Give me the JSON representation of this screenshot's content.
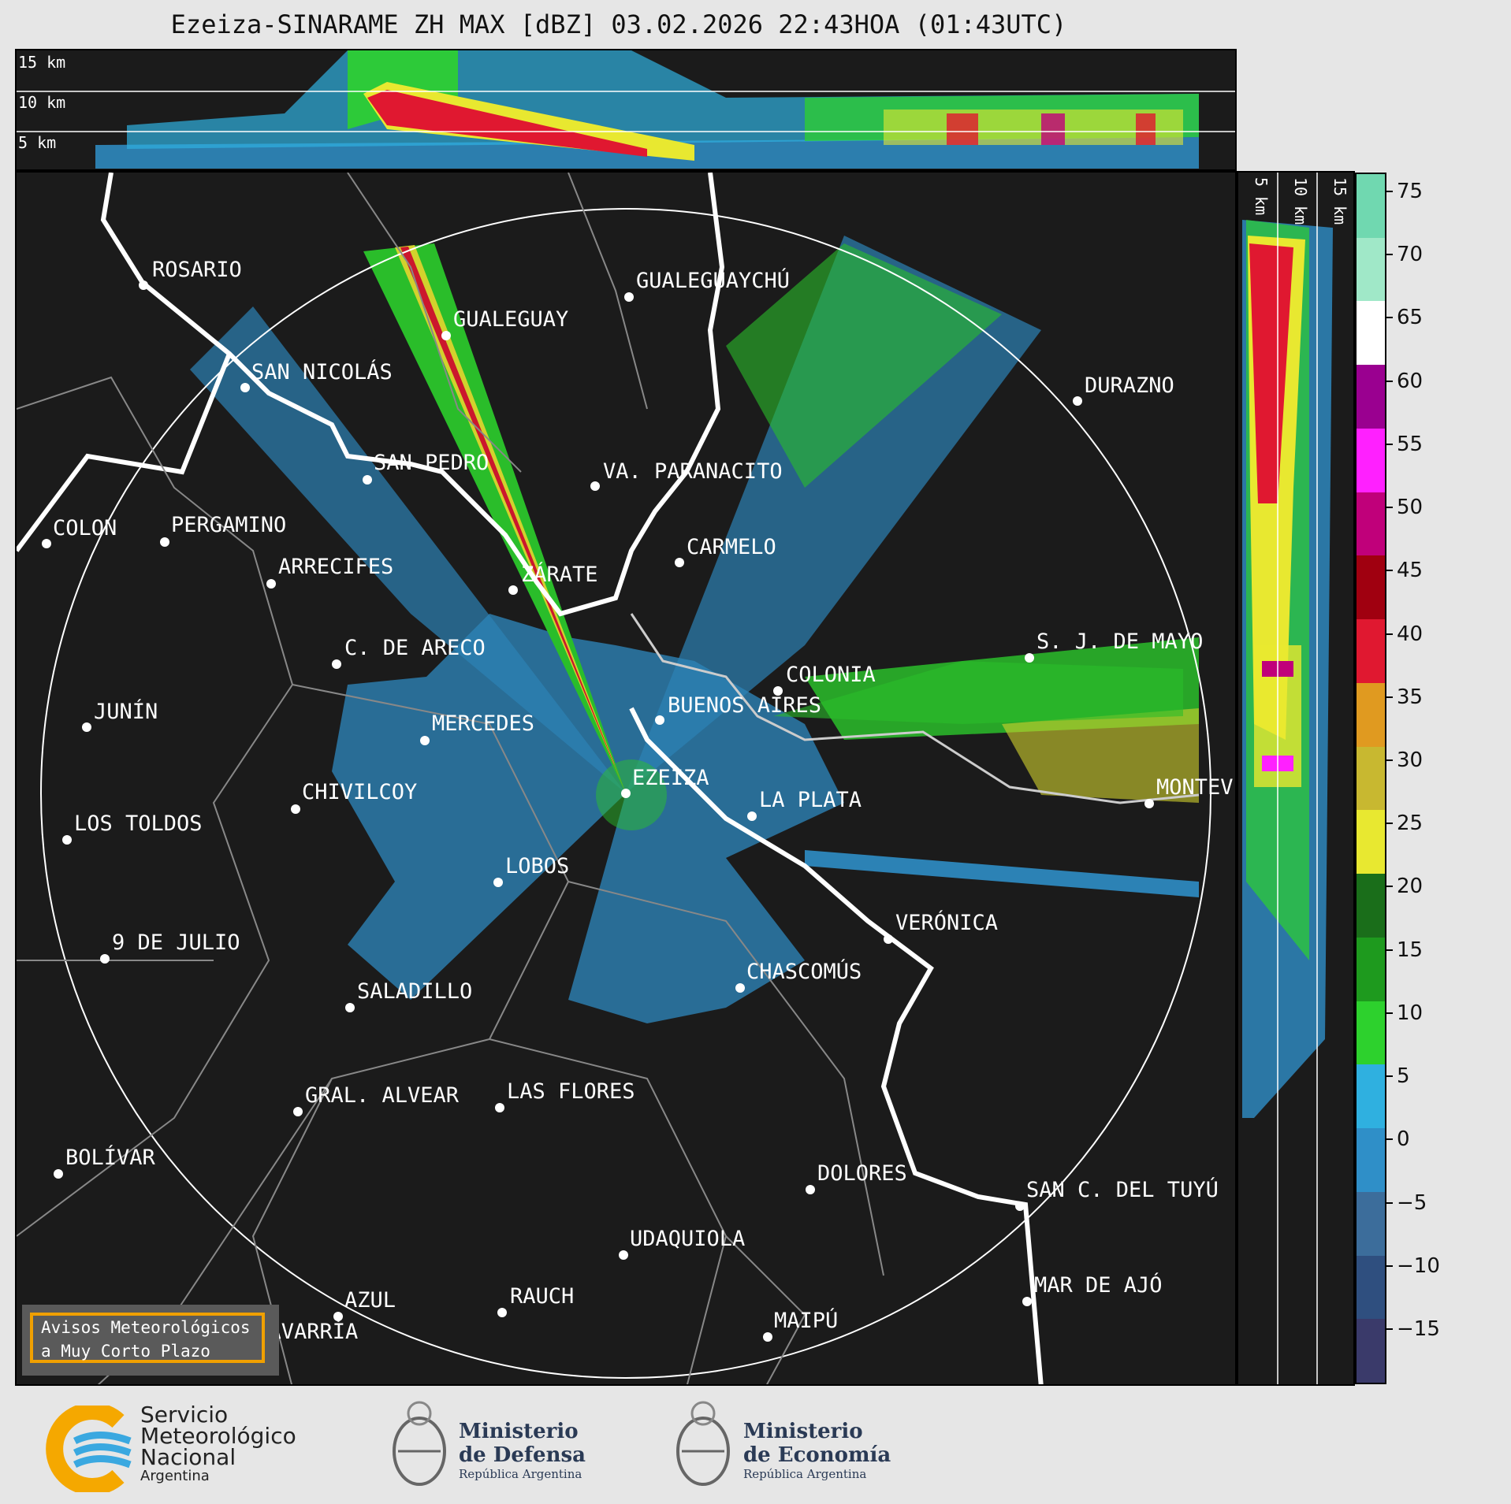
{
  "title": "Ezeiza-SINARAME ZH MAX [dBZ] 03.02.2026 22:43HOA (01:43UTC)",
  "top_panel": {
    "height_labels": [
      "15 km",
      "10 km",
      "5 km"
    ]
  },
  "side_panel": {
    "height_labels": [
      "5 km",
      "10 km",
      "15 km"
    ]
  },
  "colorbar": {
    "unit": "dBZ",
    "ticks": [
      "75",
      "70",
      "65",
      "60",
      "55",
      "50",
      "45",
      "40",
      "35",
      "30",
      "25",
      "20",
      "15",
      "10",
      "5",
      "0",
      "−5",
      "−10",
      "−15"
    ],
    "colors": [
      "#3a3a6a",
      "#2f4f7f",
      "#3c6d9b",
      "#2f8fc8",
      "#2fb0e0",
      "#2dd12d",
      "#1e9a1e",
      "#1a6e1a",
      "#e8e830",
      "#c8b830",
      "#e09a20",
      "#e01830",
      "#a00010",
      "#c0007a",
      "#ff20ff",
      "#9a0090",
      "#ffffff",
      "#a0e8c8",
      "#70d8b0"
    ]
  },
  "cities": [
    {
      "name": "ROSARIO"
    },
    {
      "name": "GUALEGUAYCHÚ"
    },
    {
      "name": "GUALEGUAY"
    },
    {
      "name": "SAN NICOLÁS"
    },
    {
      "name": "DURAZNO"
    },
    {
      "name": "SAN PEDRO"
    },
    {
      "name": "VA. PARANACITO"
    },
    {
      "name": "COLON"
    },
    {
      "name": "PERGAMINO"
    },
    {
      "name": "CARMELO"
    },
    {
      "name": "ARRECIFES"
    },
    {
      "name": "ZÁRATE"
    },
    {
      "name": "S. J. DE MAYO"
    },
    {
      "name": "C. DE ARECO"
    },
    {
      "name": "COLONIA"
    },
    {
      "name": "JUNÍN"
    },
    {
      "name": "BUENOS AIRES"
    },
    {
      "name": "MERCEDES"
    },
    {
      "name": "EZEIZA"
    },
    {
      "name": "MONTEV"
    },
    {
      "name": "CHIVILCOY"
    },
    {
      "name": "LA PLATA"
    },
    {
      "name": "LOS TOLDOS"
    },
    {
      "name": "LOBOS"
    },
    {
      "name": "VERÓNICA"
    },
    {
      "name": "9 DE JULIO"
    },
    {
      "name": "CHASCOMÚS"
    },
    {
      "name": "SALADILLO"
    },
    {
      "name": "GRAL. ALVEAR"
    },
    {
      "name": "LAS FLORES"
    },
    {
      "name": "BOLÍVAR"
    },
    {
      "name": "DOLORES"
    },
    {
      "name": "SAN C. DEL TUYÚ"
    },
    {
      "name": "UDAQUIOLA"
    },
    {
      "name": "MAR DE AJÓ"
    },
    {
      "name": "AZUL"
    },
    {
      "name": "RAUCH"
    },
    {
      "name": "MAIPÚ"
    },
    {
      "name": "OLAVARRÍA"
    }
  ],
  "warning": {
    "line1": "Avisos Meteorológicos",
    "line2": "a Muy Corto Plazo"
  },
  "footer": {
    "smn_line1": "Servicio",
    "smn_line2": "Meteorológico",
    "smn_line3": "Nacional",
    "smn_line4": "Argentina",
    "defensa_line1": "Ministerio",
    "defensa_line2": "de Defensa",
    "defensa_line3": "República Argentina",
    "economia_line1": "Ministerio",
    "economia_line2": "de Economía",
    "economia_line3": "República Argentina"
  }
}
